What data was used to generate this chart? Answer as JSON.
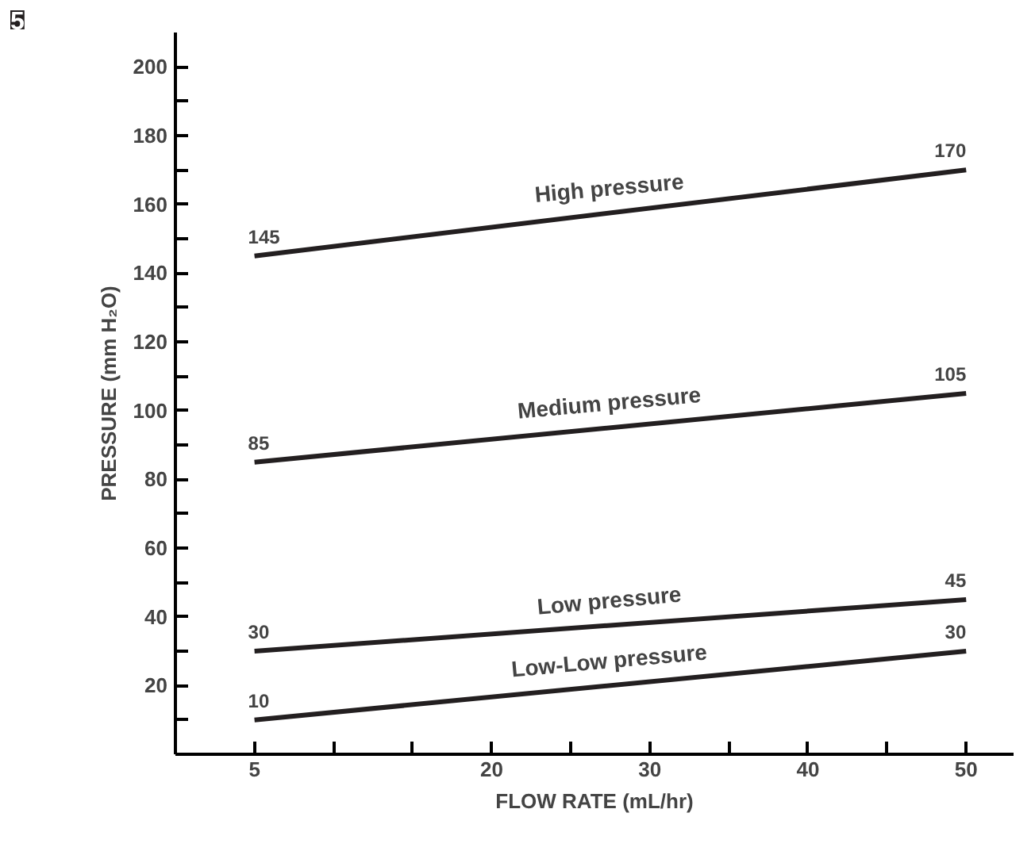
{
  "chart_data": {
    "type": "line",
    "xlabel": "FLOW RATE (mL/hr)",
    "ylabel": "PRESSURE (mm H₂O)",
    "annotations": [
      "5"
    ],
    "xlim": [
      0,
      53
    ],
    "ylim": [
      0,
      210
    ],
    "xticks": [
      5,
      {
        "value": 10,
        "label": null
      },
      {
        "value": 15,
        "label": null
      },
      20,
      {
        "value": 25,
        "label": null
      },
      30,
      {
        "value": 35,
        "label": null
      },
      40,
      {
        "value": 45,
        "label": null
      },
      50
    ],
    "yticks": [
      {
        "value": 10,
        "label": null
      },
      20,
      {
        "value": 30,
        "label": null
      },
      40,
      {
        "value": 50,
        "label": null
      },
      60,
      {
        "value": 70,
        "label": null
      },
      80,
      {
        "value": 90,
        "label": null
      },
      100,
      {
        "value": 110,
        "label": null
      },
      120,
      {
        "value": 130,
        "label": null
      },
      140,
      {
        "value": 150,
        "label": null
      },
      160,
      {
        "value": 170,
        "label": null
      },
      180,
      {
        "value": 190,
        "label": null
      },
      200
    ],
    "x": [
      5,
      50
    ],
    "series": [
      {
        "name": "High pressure",
        "color": "#231f20",
        "values": [
          145,
          170
        ]
      },
      {
        "name": "Medium pressure",
        "color": "#231f20",
        "values": [
          85,
          105
        ]
      },
      {
        "name": "Low pressure",
        "color": "#231f20",
        "values": [
          30,
          45
        ]
      },
      {
        "name": "Low-Low pressure",
        "color": "#231f20",
        "values": [
          10,
          30
        ]
      }
    ],
    "data_labels": true,
    "grid": false,
    "marker": "none",
    "line_style": "solid"
  }
}
